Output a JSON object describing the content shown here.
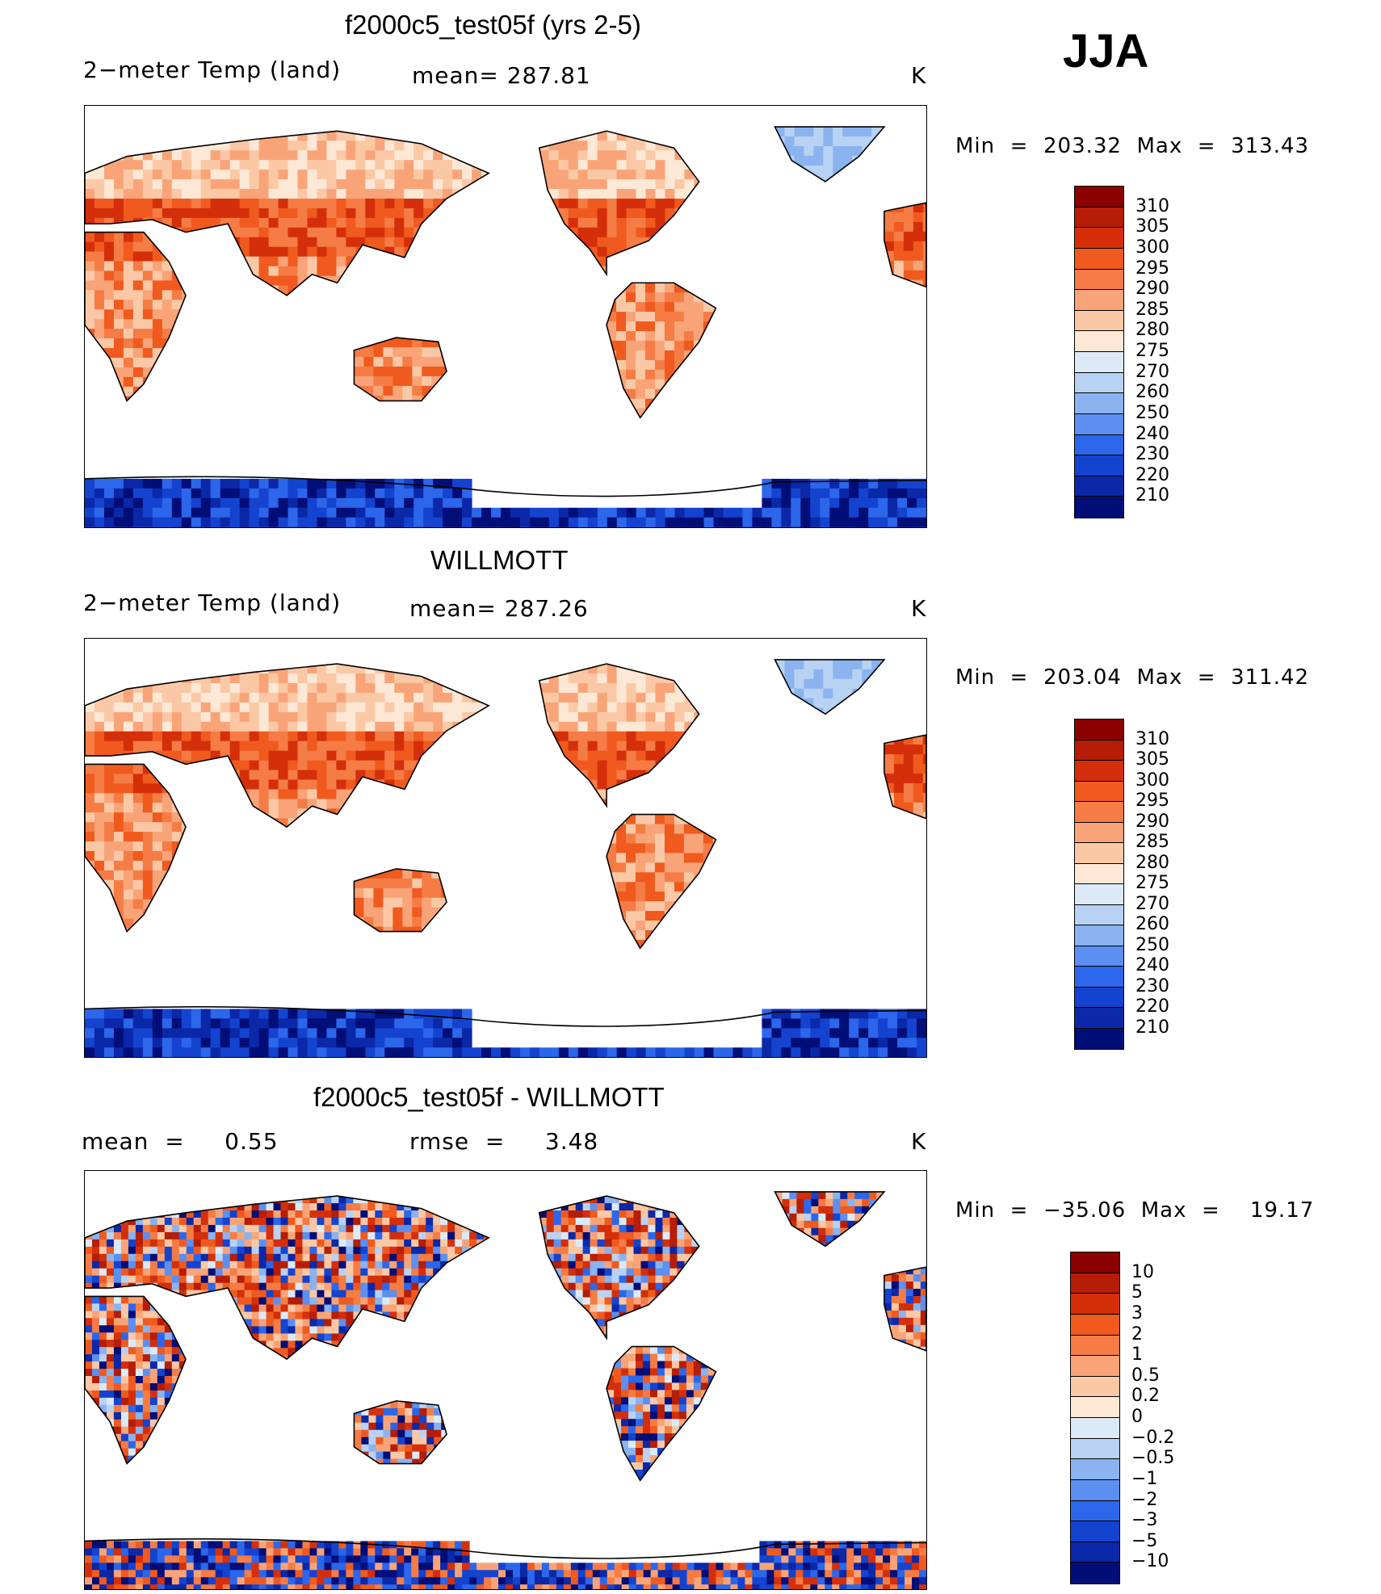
{
  "season": "JJA",
  "panels": [
    {
      "id": "model",
      "title": "f2000c5_test05f (yrs 2-5)",
      "left_label": "2−meter Temp (land)",
      "mid_label": "mean= 287.81",
      "units": "K",
      "minmax": "Min  =  203.32  Max  =  313.43",
      "palette": "temp"
    },
    {
      "id": "obs",
      "title": "WILLMOTT",
      "left_label": "2−meter Temp (land)",
      "mid_label": "mean= 287.26",
      "units": "K",
      "minmax": "Min  =  203.04  Max  =  311.42",
      "palette": "temp"
    },
    {
      "id": "diff",
      "title": "f2000c5_test05f - WILLMOTT",
      "left_label": "mean  =     0.55",
      "mid_label": "rmse  =     3.48",
      "units": "K",
      "minmax": "Min  =  −35.06  Max  =    19.17",
      "palette": "diff"
    }
  ],
  "chart_data": [
    {
      "type": "heatmap",
      "title": "f2000c5_test05f (yrs 2-5)",
      "variable": "2−meter Temp (land)",
      "units": "K",
      "mean": 287.81,
      "min": 203.32,
      "max": 313.43,
      "colorbar_levels": [
        "310",
        "305",
        "300",
        "295",
        "290",
        "285",
        "280",
        "275",
        "270",
        "260",
        "250",
        "240",
        "230",
        "220",
        "210"
      ],
      "colorbar_colors": [
        "#8b0000",
        "#b51d06",
        "#d42f0a",
        "#f05a1e",
        "#f57c45",
        "#f9a478",
        "#fbc8a6",
        "#fde8d6",
        "#dceaf7",
        "#b8d2f3",
        "#8ab3ef",
        "#5c8ff0",
        "#2c66ea",
        "#1443cf",
        "#0a28a8",
        "#020e78"
      ]
    },
    {
      "type": "heatmap",
      "title": "WILLMOTT",
      "variable": "2−meter Temp (land)",
      "units": "K",
      "mean": 287.26,
      "min": 203.04,
      "max": 311.42,
      "colorbar_levels": [
        "310",
        "305",
        "300",
        "295",
        "290",
        "285",
        "280",
        "275",
        "270",
        "260",
        "250",
        "240",
        "230",
        "220",
        "210"
      ],
      "colorbar_colors": [
        "#8b0000",
        "#b51d06",
        "#d42f0a",
        "#f05a1e",
        "#f57c45",
        "#f9a478",
        "#fbc8a6",
        "#fde8d6",
        "#dceaf7",
        "#b8d2f3",
        "#8ab3ef",
        "#5c8ff0",
        "#2c66ea",
        "#1443cf",
        "#0a28a8",
        "#020e78"
      ]
    },
    {
      "type": "heatmap",
      "title": "f2000c5_test05f - WILLMOTT",
      "units": "K",
      "mean": 0.55,
      "rmse": 3.48,
      "min": -35.06,
      "max": 19.17,
      "colorbar_levels": [
        "10",
        "5",
        "3",
        "2",
        "1",
        "0.5",
        "0.2",
        "0",
        "−0.2",
        "−0.5",
        "−1",
        "−2",
        "−3",
        "−5",
        "−10"
      ],
      "colorbar_colors": [
        "#8b0000",
        "#b51d06",
        "#d42f0a",
        "#f05a1e",
        "#f57c45",
        "#f9a478",
        "#fbc8a6",
        "#fde8d6",
        "#dceaf7",
        "#b8d2f3",
        "#8ab3ef",
        "#5c8ff0",
        "#2c66ea",
        "#1443cf",
        "#0a28a8",
        "#020e78"
      ]
    }
  ]
}
